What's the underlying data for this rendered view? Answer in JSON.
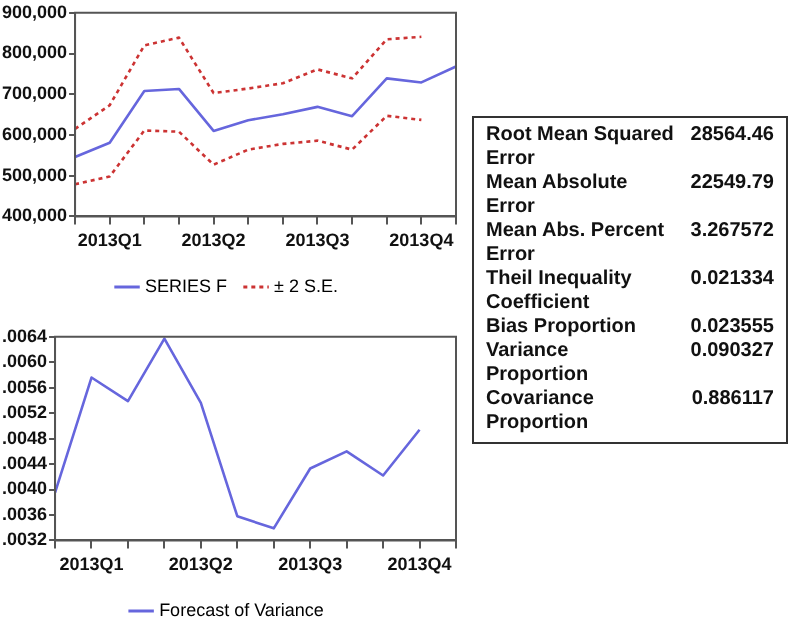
{
  "chart_data": [
    {
      "type": "line",
      "categories": [
        null,
        "2013Q1",
        null,
        null,
        "2013Q2",
        null,
        null,
        "2013Q3",
        null,
        null,
        "2013Q4",
        null
      ],
      "series": [
        {
          "name": "SERIES F",
          "color": "#6666dd",
          "line_style": "solid",
          "values": [
            546000,
            581000,
            708000,
            713000,
            610000,
            636000,
            651000,
            669000,
            646000,
            739000,
            729000,
            768000
          ]
        },
        {
          "name": "± 2 S.E.",
          "color": "#cc3333",
          "line_style": "dotted",
          "values": [
            615000,
            673000,
            820000,
            839000,
            703000,
            714000,
            727000,
            761000,
            739000,
            835000,
            841000,
            null
          ]
        },
        {
          "color": "#cc3333",
          "line_style": "dotted",
          "values": [
            479000,
            498000,
            611000,
            608000,
            527000,
            564000,
            578000,
            586000,
            564000,
            647000,
            637000,
            null
          ]
        }
      ],
      "ylim": [
        400000,
        900000
      ],
      "yticks": [
        {
          "value": 400000,
          "label": "400,000"
        },
        {
          "value": 500000,
          "label": "500,000"
        },
        {
          "value": 600000,
          "label": "600,000"
        },
        {
          "value": 700000,
          "label": "700,000"
        },
        {
          "value": 800000,
          "label": "800,000"
        },
        {
          "value": 900000,
          "label": "900,000"
        }
      ],
      "legend": "bottom"
    },
    {
      "type": "other",
      "annotations": [
        "Root Mean Squared Error",
        "28564.46",
        "Mean Absolute Error",
        "22549.79",
        "Mean Abs. Percent Error",
        "3.267572",
        "Theil Inequality Coefficient",
        "0.021334",
        "Bias Proportion",
        "0.023555",
        "Variance Proportion",
        "0.090327",
        "Covariance Proportion",
        "0.886117"
      ]
    },
    {
      "type": "line",
      "categories": [
        null,
        "2013Q1",
        null,
        null,
        "2013Q2",
        null,
        null,
        "2013Q3",
        null,
        null,
        "2013Q4",
        null
      ],
      "series": [
        {
          "name": "Forecast of Variance",
          "color": "#6666dd",
          "line_style": "solid",
          "values": [
            0.00395,
            0.00576,
            0.00539,
            0.00637,
            0.00536,
            0.00358,
            0.00339,
            0.00433,
            0.0046,
            0.00422,
            0.00494,
            null
          ]
        }
      ],
      "ylim": [
        0.0032,
        0.0064
      ],
      "yticks": [
        {
          "value": 0.0032,
          "label": ".0032"
        },
        {
          "value": 0.0036,
          "label": ".0036"
        },
        {
          "value": 0.004,
          "label": ".0040"
        },
        {
          "value": 0.0044,
          "label": ".0044"
        },
        {
          "value": 0.0048,
          "label": ".0048"
        },
        {
          "value": 0.0052,
          "label": ".0052"
        },
        {
          "value": 0.0056,
          "label": ".0056"
        },
        {
          "value": 0.006,
          "label": ".0060"
        },
        {
          "value": 0.0064,
          "label": ".0064"
        }
      ],
      "legend": "bottom"
    }
  ]
}
